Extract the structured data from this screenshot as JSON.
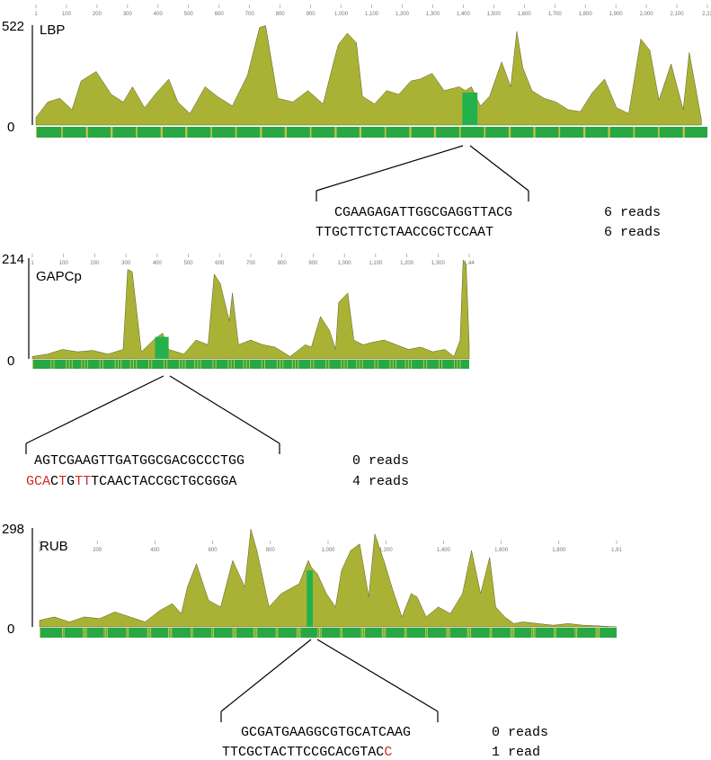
{
  "colors": {
    "coverage": "#aab236",
    "highlight": "#23b14d",
    "track": "#27a844",
    "axis": "#000000",
    "mismatch": "#d12a2a"
  },
  "chart_data": [
    {
      "type": "area",
      "title": "LBP",
      "ylim": [
        0,
        522
      ],
      "yticks": [
        "522",
        "0"
      ],
      "xticks": [
        "1",
        "100",
        "200",
        "300",
        "400",
        "500",
        "600",
        "700",
        "800",
        "900",
        "1,000",
        "1,100",
        "1,200",
        "1,300",
        "1,400",
        "1,500",
        "1,600",
        "1,700",
        "1,800",
        "1,900",
        "2,000",
        "2,100",
        "2,22"
      ],
      "xlim": [
        1,
        2220
      ],
      "highlight_region": [
        1410,
        1460
      ],
      "series": [
        {
          "x": [
            1,
            40,
            80,
            120,
            150,
            200,
            250,
            290,
            320,
            360,
            400,
            440,
            470,
            510,
            560,
            600,
            650,
            700,
            740,
            760,
            800,
            850,
            900,
            950,
            980,
            1000,
            1030,
            1060,
            1080,
            1120,
            1160,
            1200,
            1240,
            1270,
            1310,
            1350,
            1400,
            1420,
            1440,
            1470,
            1500,
            1540,
            1570,
            1590,
            1610,
            1640,
            1680,
            1720,
            1760,
            1800,
            1840,
            1880,
            1920,
            1960,
            2000,
            2030,
            2060,
            2100,
            2140,
            2160,
            2200
          ],
          "y": [
            40,
            120,
            140,
            80,
            230,
            280,
            160,
            120,
            200,
            90,
            170,
            240,
            120,
            60,
            200,
            150,
            100,
            260,
            510,
            520,
            140,
            120,
            180,
            110,
            300,
            420,
            480,
            430,
            150,
            110,
            180,
            160,
            230,
            240,
            270,
            180,
            200,
            180,
            200,
            100,
            150,
            330,
            200,
            490,
            300,
            180,
            140,
            120,
            80,
            70,
            170,
            240,
            90,
            60,
            450,
            390,
            130,
            320,
            80,
            380,
            30
          ]
        }
      ],
      "sequences": [
        {
          "text": "CGAAGAGATTGGCGAGGTTACG",
          "reads": "6 reads"
        },
        {
          "text": "TTGCTTCTCTAACCGCTCCAAT",
          "reads": "6 reads"
        }
      ]
    },
    {
      "type": "area",
      "title": "GAPCp",
      "ylim": [
        0,
        214
      ],
      "yticks": [
        "214",
        "0"
      ],
      "xticks": [
        "1",
        "100",
        "200",
        "300",
        "400",
        "500",
        "600",
        "700",
        "800",
        "900",
        "1,000",
        "1,100",
        "1,200",
        "1,300",
        "1,44"
      ],
      "xlim": [
        1,
        1440
      ],
      "highlight_region": [
        405,
        450
      ],
      "series": [
        {
          "x": [
            1,
            50,
            100,
            150,
            200,
            250,
            300,
            315,
            330,
            360,
            400,
            430,
            450,
            500,
            540,
            580,
            600,
            620,
            650,
            660,
            680,
            720,
            760,
            800,
            850,
            880,
            900,
            920,
            950,
            980,
            1000,
            1010,
            1040,
            1060,
            1090,
            1120,
            1160,
            1200,
            1240,
            1280,
            1320,
            1360,
            1390,
            1410,
            1420,
            1430,
            1440
          ],
          "y": [
            5,
            10,
            20,
            15,
            18,
            10,
            20,
            190,
            185,
            15,
            40,
            55,
            20,
            10,
            40,
            30,
            180,
            160,
            80,
            140,
            30,
            40,
            30,
            25,
            5,
            20,
            30,
            25,
            90,
            60,
            20,
            120,
            140,
            40,
            30,
            35,
            40,
            30,
            20,
            25,
            15,
            20,
            5,
            40,
            210,
            200,
            30
          ]
        }
      ],
      "sequences": [
        {
          "text": "AGTCGAAGTTGATGGCGACGCCCTGG",
          "reads": "0 reads"
        },
        {
          "text": "GCACTGTTTCAACTACCGCTGCGGGA",
          "reads": "4 reads"
        }
      ]
    },
    {
      "type": "area",
      "title": "RUB",
      "ylim": [
        0,
        298
      ],
      "yticks": [
        "298",
        "0"
      ],
      "xticks": [
        "1",
        "200",
        "400",
        "600",
        "800",
        "1,000",
        "1,200",
        "1,400",
        "1,600",
        "1,800",
        "1,91"
      ],
      "xlim": [
        1,
        1910
      ],
      "highlight_region": [
        885,
        905
      ],
      "series": [
        {
          "x": [
            1,
            50,
            100,
            150,
            200,
            250,
            300,
            350,
            400,
            440,
            470,
            490,
            520,
            560,
            600,
            640,
            680,
            700,
            720,
            760,
            800,
            820,
            860,
            890,
            900,
            920,
            950,
            980,
            1000,
            1030,
            1060,
            1090,
            1110,
            1140,
            1170,
            1200,
            1230,
            1250,
            1280,
            1320,
            1360,
            1400,
            1430,
            1460,
            1490,
            1510,
            1540,
            1570,
            1600,
            1650,
            1700,
            1750,
            1800,
            1850,
            1910
          ],
          "y": [
            20,
            30,
            15,
            30,
            25,
            45,
            30,
            15,
            50,
            70,
            40,
            120,
            190,
            80,
            60,
            200,
            120,
            295,
            230,
            60,
            100,
            110,
            130,
            200,
            180,
            160,
            100,
            60,
            170,
            230,
            250,
            90,
            280,
            200,
            110,
            30,
            100,
            90,
            30,
            60,
            40,
            100,
            230,
            100,
            210,
            60,
            30,
            10,
            15,
            10,
            5,
            10,
            5,
            3,
            0
          ]
        }
      ],
      "sequences": [
        {
          "text": "GCGATGAAGGCGTGCATCAAG",
          "reads": "0 reads"
        },
        {
          "text": "TTCGCTACTTCCGCACGTACC",
          "reads": "1 read"
        }
      ]
    }
  ],
  "mismatch_positions": {
    "GAPCp_line2": [
      0,
      1,
      2,
      4,
      6,
      7
    ],
    "RUB_line2": [
      20
    ]
  }
}
